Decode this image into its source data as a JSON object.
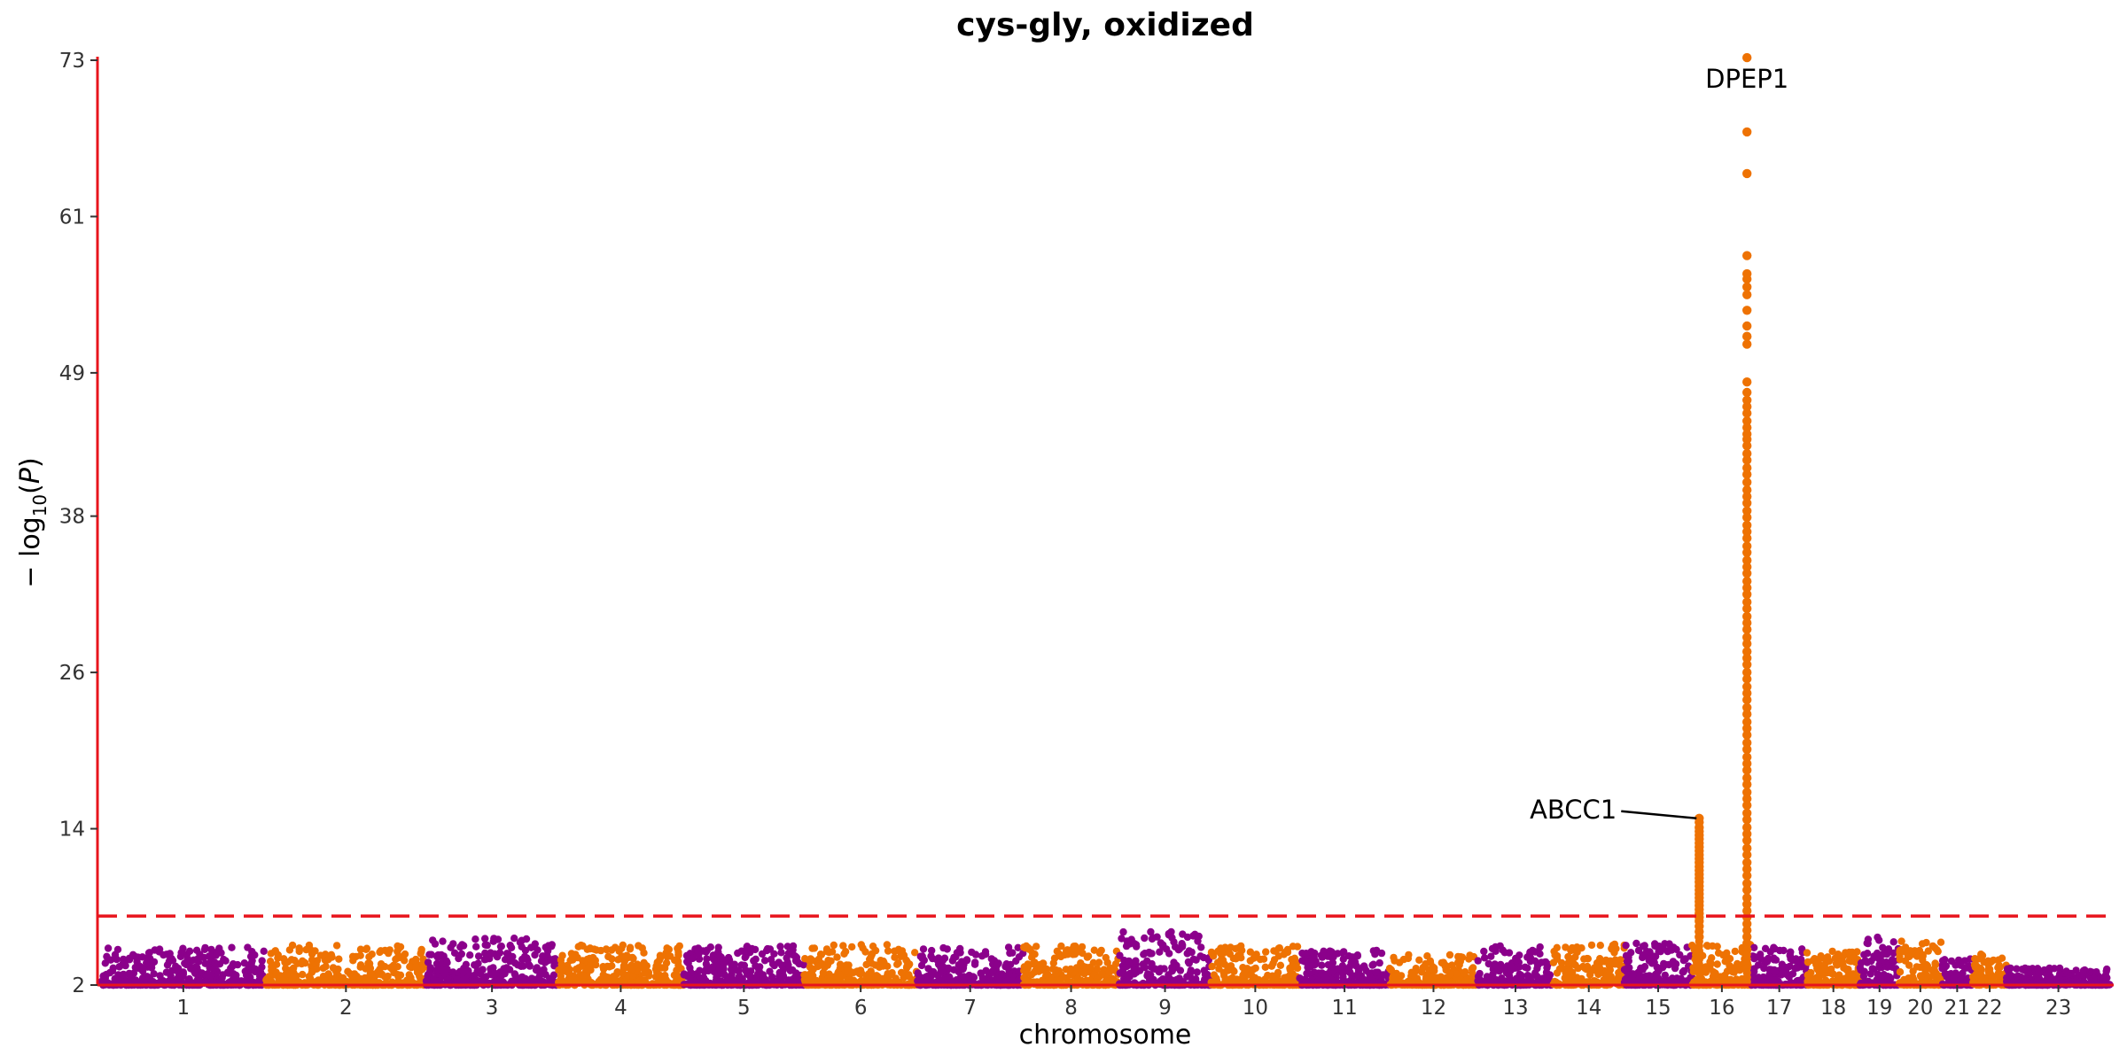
{
  "chart_data": {
    "type": "scatter",
    "subtype": "manhattan",
    "title": "cys-gly, oxidized",
    "xlabel": "chromosome",
    "ylabel": "−log10(P)",
    "ylim": [
      2,
      73
    ],
    "yticks": [
      2,
      14,
      26,
      38,
      49,
      61,
      73
    ],
    "grid": false,
    "legend": "none",
    "significance_threshold": 7.3,
    "colors": {
      "odd_chromosome": "#8B008B",
      "even_chromosome": "#EE7203",
      "axis": "#E8141C",
      "threshold_line": "#E8141C"
    },
    "chromosomes": [
      "1",
      "2",
      "3",
      "4",
      "5",
      "6",
      "7",
      "8",
      "9",
      "10",
      "11",
      "12",
      "13",
      "14",
      "15",
      "16",
      "17",
      "18",
      "19",
      "20",
      "21",
      "22",
      "23"
    ],
    "chromosome_relative_lengths": [
      248,
      242,
      198,
      190,
      181,
      171,
      159,
      145,
      138,
      134,
      135,
      133,
      114,
      107,
      102,
      90,
      83,
      80,
      59,
      64,
      47,
      51,
      156
    ],
    "background_max_log10p": [
      4.9,
      5.1,
      5.6,
      5.1,
      5.0,
      5.1,
      5.0,
      5.0,
      6.1,
      5.1,
      4.7,
      4.4,
      5.0,
      5.2,
      5.2,
      5.1,
      5.0,
      4.6,
      5.7,
      5.5,
      4.1,
      4.4,
      3.3
    ],
    "peaks": [
      {
        "gene": "ABCC1",
        "chromosome": "16",
        "max_log10p": 14.8,
        "values": [
          14.8,
          14.5,
          14.1,
          13.8,
          13.5,
          13.2,
          12.9,
          12.6,
          12.3,
          12.0,
          11.7,
          11.4,
          11.1,
          10.8,
          10.5,
          10.2,
          9.9,
          9.6,
          9.3,
          9.0,
          8.7,
          8.4,
          8.1,
          7.8,
          7.5,
          7.2,
          6.9,
          6.5,
          6.1,
          5.7
        ]
      },
      {
        "gene": "DPEP1",
        "chromosome": "16",
        "max_log10p": 73.2,
        "values": [
          73.2,
          67.5,
          64.3,
          58.0,
          56.6,
          56.2,
          55.6,
          55.0,
          53.8,
          52.6,
          51.8,
          51.2,
          48.3,
          47.5,
          46.9,
          46.4,
          45.9,
          45.3,
          44.8,
          44.3,
          43.9,
          43.4,
          42.8,
          42.3,
          41.7,
          41.2,
          40.6,
          40.0,
          39.5,
          39.0,
          38.4,
          37.9,
          37.3,
          36.8,
          36.3,
          35.7,
          35.2,
          34.6,
          34.1,
          33.6,
          33.0,
          32.5,
          32.0,
          31.4,
          30.9,
          30.3,
          29.8,
          29.3,
          28.7,
          28.2,
          27.6,
          27.1,
          26.6,
          26.0,
          25.5,
          24.9,
          24.4,
          23.9,
          23.3,
          22.8,
          22.2,
          21.7,
          21.2,
          20.6,
          20.1,
          19.5,
          19.0,
          18.5,
          17.9,
          17.4,
          16.8,
          16.3,
          15.8,
          15.2,
          14.7,
          14.1,
          13.6,
          13.1,
          12.5,
          12.0,
          11.4,
          10.9,
          10.4,
          9.8,
          9.3,
          8.7,
          8.2,
          7.7,
          7.2,
          6.7,
          6.2,
          5.7,
          5.2,
          4.7
        ]
      }
    ],
    "annotations": [
      {
        "text": "DPEP1",
        "chromosome": "16",
        "log10p": 73.2
      },
      {
        "text": "ABCC1",
        "chromosome": "16",
        "log10p": 14.8
      }
    ]
  }
}
